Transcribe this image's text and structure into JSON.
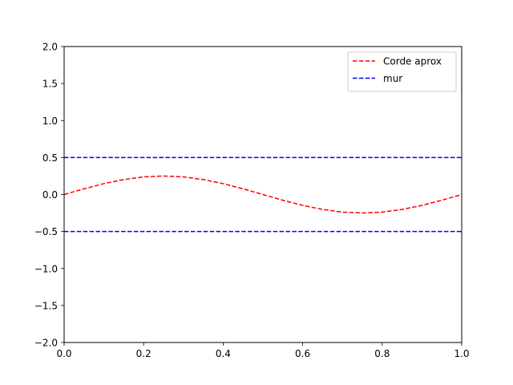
{
  "chart_data": {
    "type": "line",
    "title": "",
    "xlabel": "",
    "ylabel": "",
    "xlim": [
      0.0,
      1.0
    ],
    "ylim": [
      -2.0,
      2.0
    ],
    "grid": false,
    "legend_position": "top-right",
    "x_ticks": [
      "0.0",
      "0.2",
      "0.4",
      "0.6",
      "0.8",
      "1.0"
    ],
    "y_ticks": [
      "−2.0",
      "−1.5",
      "−1.0",
      "−0.5",
      "0.0",
      "0.5",
      "1.0",
      "1.5",
      "2.0"
    ],
    "series": [
      {
        "name": "Corde aprox",
        "color": "#ff0000",
        "style": "dashed",
        "x": [
          0.0,
          0.05,
          0.1,
          0.15,
          0.2,
          0.25,
          0.3,
          0.35,
          0.4,
          0.45,
          0.5,
          0.55,
          0.6,
          0.65,
          0.7,
          0.75,
          0.8,
          0.85,
          0.9,
          0.95,
          1.0
        ],
        "y": [
          0.0,
          0.077,
          0.147,
          0.202,
          0.238,
          0.25,
          0.238,
          0.202,
          0.147,
          0.077,
          0.0,
          -0.077,
          -0.147,
          -0.202,
          -0.238,
          -0.25,
          -0.238,
          -0.202,
          -0.147,
          -0.077,
          0.0
        ]
      },
      {
        "name": "mur",
        "color": "#0000ff",
        "style": "dashed",
        "x": [
          0.0,
          1.0
        ],
        "y": [
          0.5,
          0.5
        ]
      },
      {
        "name": "",
        "color": "#0000ff",
        "style": "dashed",
        "x": [
          0.0,
          1.0
        ],
        "y": [
          -0.5,
          -0.5
        ]
      }
    ]
  }
}
